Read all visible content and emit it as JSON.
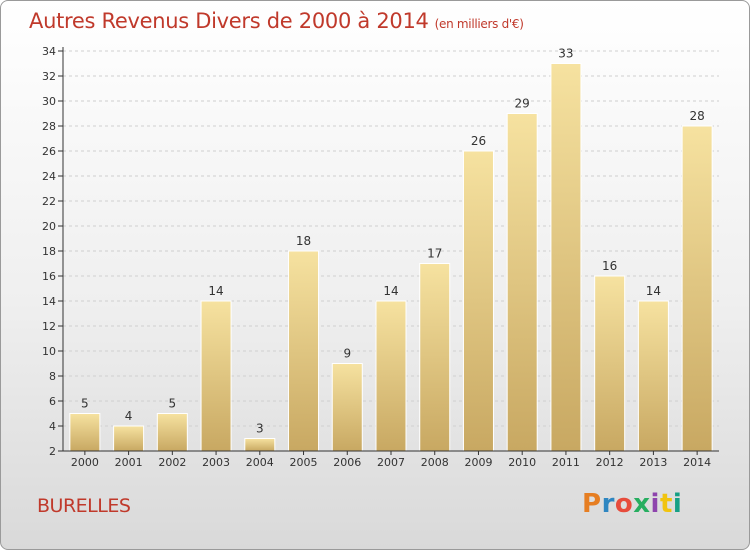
{
  "header": {
    "title": "Autres Revenus Divers de 2000 à 2014",
    "unit": "(en milliers d'€)"
  },
  "footer": {
    "commune": "BURELLES",
    "logo_text": "Proxiti"
  },
  "colors": {
    "title": "#c0392b",
    "bar_top": "#f6e2a0",
    "bar_bottom": "#c8a862",
    "axis": "#333333",
    "grid": "#cfcfcf"
  },
  "chart_data": {
    "type": "bar",
    "title": "Autres Revenus Divers de 2000 à 2014",
    "subtitle": "(en milliers d'€)",
    "categories": [
      "2000",
      "2001",
      "2002",
      "2003",
      "2004",
      "2005",
      "2006",
      "2007",
      "2008",
      "2009",
      "2010",
      "2011",
      "2012",
      "2013",
      "2014"
    ],
    "values": [
      5,
      4,
      5,
      14,
      3,
      18,
      9,
      14,
      17,
      26,
      29,
      33,
      16,
      14,
      28
    ],
    "ylim": [
      2,
      34
    ],
    "yticks": [
      2,
      4,
      6,
      8,
      10,
      12,
      14,
      16,
      18,
      20,
      22,
      24,
      26,
      28,
      30,
      32,
      34
    ],
    "xlabel": "",
    "ylabel": "",
    "grid": true,
    "data_labels": true,
    "legend": "none"
  }
}
